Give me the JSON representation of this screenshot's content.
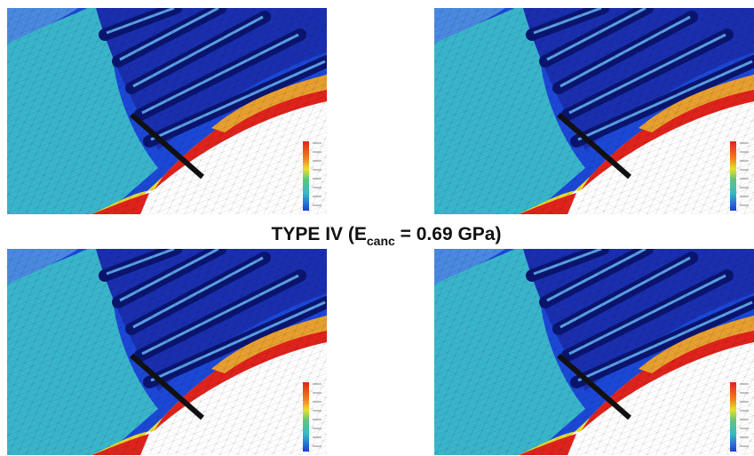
{
  "caption": {
    "prefix": "TYPE IV (E",
    "subscript": "canc",
    "suffix": " = 0.69 GPa)"
  }
}
